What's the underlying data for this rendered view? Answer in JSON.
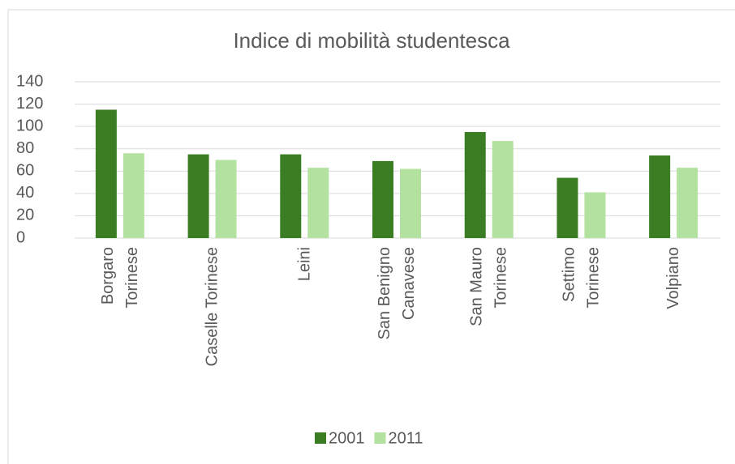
{
  "chart_data": {
    "type": "bar",
    "title": "Indice di mobilità studentesca",
    "categories": [
      "Borgaro\nTorinese",
      "Caselle Torinese",
      "Leini",
      "San Benigno\nCanavese",
      "San Mauro\nTorinese",
      "Settimo\nTorinese",
      "Volpiano"
    ],
    "series": [
      {
        "name": "2001",
        "color": "#3a7d22",
        "values": [
          115,
          75,
          75,
          69,
          95,
          54,
          74
        ]
      },
      {
        "name": "2011",
        "color": "#b3e2a0",
        "values": [
          76,
          70,
          63,
          62,
          87,
          41,
          63
        ]
      }
    ],
    "ylim": [
      0,
      140
    ],
    "yticks": [
      0,
      20,
      40,
      60,
      80,
      100,
      120,
      140
    ],
    "grid": true,
    "legend": "bottom"
  }
}
